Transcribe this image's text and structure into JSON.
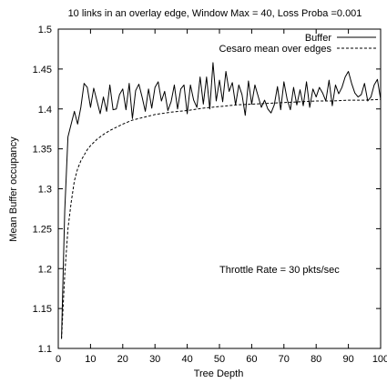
{
  "chart_data": {
    "type": "line",
    "title": "10 links in an overlay edge, Window Max = 40, Loss Proba =0.001",
    "xlabel": "Tree Depth",
    "ylabel": "Mean Buffer occupancy",
    "xlim": [
      0,
      100
    ],
    "ylim": [
      1.1,
      1.5
    ],
    "xticks": [
      0,
      10,
      20,
      30,
      40,
      50,
      60,
      70,
      80,
      90,
      100
    ],
    "yticks": [
      1.1,
      1.15,
      1.2,
      1.25,
      1.3,
      1.35,
      1.4,
      1.45,
      1.5
    ],
    "ytick_labels": [
      "1.1",
      "1.15",
      "1.2",
      "1.25",
      "1.3",
      "1.35",
      "1.4",
      "1.45",
      "1.5"
    ],
    "grid": false,
    "legend_position": "top-right",
    "annotation": "Throttle Rate = 30 pkts/sec",
    "series": [
      {
        "name": "Buffer",
        "style": "solid",
        "color": "#000000",
        "x": [
          1,
          2,
          3,
          4,
          5,
          6,
          7,
          8,
          9,
          10,
          11,
          12,
          13,
          14,
          15,
          16,
          17,
          18,
          19,
          20,
          21,
          22,
          23,
          24,
          25,
          26,
          27,
          28,
          29,
          30,
          31,
          32,
          33,
          34,
          35,
          36,
          37,
          38,
          39,
          40,
          41,
          42,
          43,
          44,
          45,
          46,
          47,
          48,
          49,
          50,
          51,
          52,
          53,
          54,
          55,
          56,
          57,
          58,
          59,
          60,
          61,
          62,
          63,
          64,
          65,
          66,
          67,
          68,
          69,
          70,
          71,
          72,
          73,
          74,
          75,
          76,
          77,
          78,
          79,
          80,
          81,
          82,
          83,
          84,
          85,
          86,
          87,
          88,
          89,
          90,
          91,
          92,
          93,
          94,
          95,
          96,
          97,
          98,
          99,
          100
        ],
        "values": [
          1.112,
          1.272,
          1.365,
          1.381,
          1.397,
          1.381,
          1.402,
          1.432,
          1.427,
          1.402,
          1.426,
          1.41,
          1.394,
          1.415,
          1.397,
          1.43,
          1.399,
          1.4,
          1.418,
          1.425,
          1.399,
          1.432,
          1.388,
          1.423,
          1.431,
          1.415,
          1.397,
          1.425,
          1.401,
          1.427,
          1.434,
          1.41,
          1.422,
          1.398,
          1.409,
          1.43,
          1.4,
          1.425,
          1.43,
          1.394,
          1.43,
          1.411,
          1.402,
          1.44,
          1.406,
          1.44,
          1.4,
          1.458,
          1.41,
          1.436,
          1.409,
          1.447,
          1.422,
          1.433,
          1.405,
          1.43,
          1.418,
          1.392,
          1.435,
          1.406,
          1.43,
          1.416,
          1.402,
          1.411,
          1.4,
          1.395,
          1.405,
          1.428,
          1.399,
          1.434,
          1.412,
          1.399,
          1.427,
          1.405,
          1.424,
          1.404,
          1.434,
          1.402,
          1.425,
          1.415,
          1.427,
          1.42,
          1.41,
          1.436,
          1.404,
          1.43,
          1.419,
          1.427,
          1.44,
          1.447,
          1.432,
          1.42,
          1.415,
          1.418,
          1.432,
          1.41,
          1.415,
          1.43,
          1.437,
          1.412
        ]
      },
      {
        "name": "Cesaro mean over edges",
        "style": "dashed",
        "color": "#000000",
        "x": [
          1,
          2,
          3,
          4,
          5,
          6,
          7,
          8,
          9,
          10,
          12,
          14,
          16,
          18,
          20,
          23,
          26,
          30,
          35,
          40,
          45,
          50,
          55,
          60,
          65,
          70,
          75,
          80,
          85,
          90,
          95,
          100
        ],
        "values": [
          1.112,
          1.192,
          1.25,
          1.283,
          1.31,
          1.325,
          1.335,
          1.342,
          1.349,
          1.354,
          1.362,
          1.368,
          1.373,
          1.377,
          1.381,
          1.386,
          1.389,
          1.393,
          1.396,
          1.398,
          1.401,
          1.403,
          1.405,
          1.406,
          1.407,
          1.408,
          1.409,
          1.41,
          1.41,
          1.411,
          1.411,
          1.412
        ]
      }
    ]
  }
}
